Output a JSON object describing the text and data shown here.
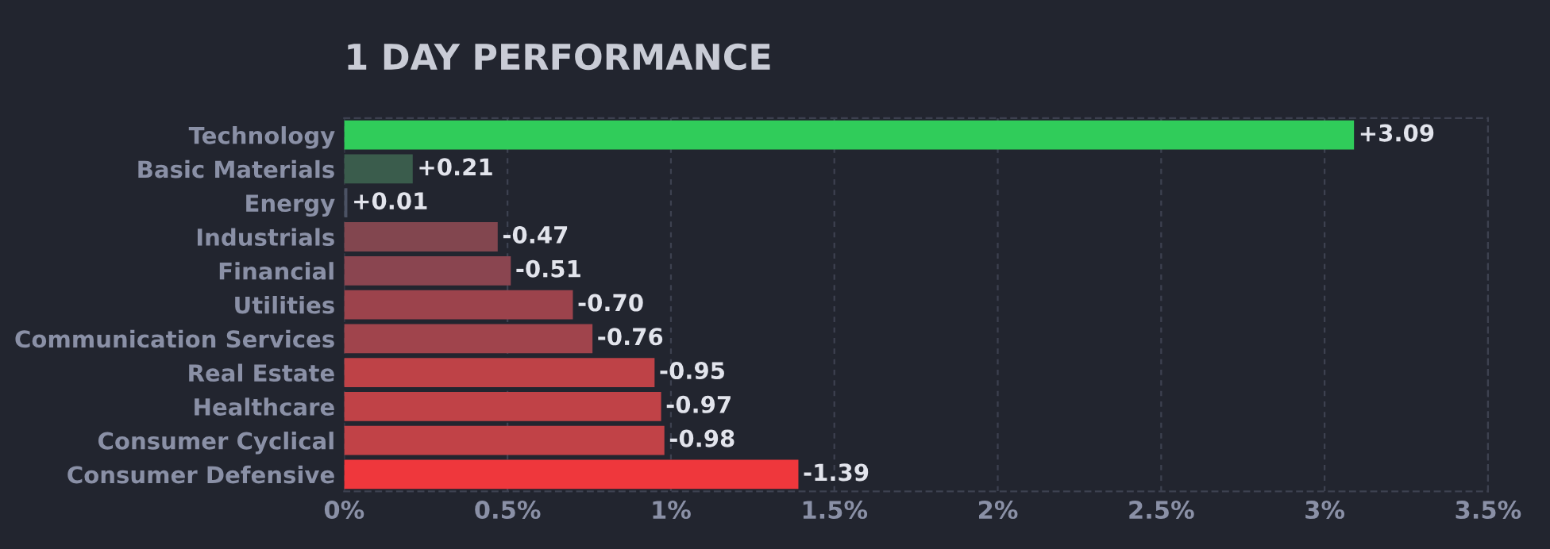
{
  "chart_data": {
    "type": "bar",
    "orientation": "horizontal",
    "title": "1 DAY PERFORMANCE",
    "categories": [
      "Technology",
      "Basic Materials",
      "Energy",
      "Industrials",
      "Financial",
      "Utilities",
      "Communication Services",
      "Real Estate",
      "Healthcare",
      "Consumer Cyclical",
      "Consumer Defensive"
    ],
    "values": [
      3.09,
      0.21,
      0.01,
      -0.47,
      -0.51,
      -0.7,
      -0.76,
      -0.95,
      -0.97,
      -0.98,
      -1.39
    ],
    "base": [
      0,
      0,
      0,
      0.47,
      0.51,
      0.7,
      0.76,
      0.95,
      0.97,
      0.98,
      1.39
    ],
    "value_labels": [
      "+3.09",
      "+0.21",
      "+0.01",
      "-0.47",
      "-0.51",
      "-0.70",
      "-0.76",
      "-0.95",
      "-0.97",
      "-0.98",
      "-1.39"
    ],
    "colors": [
      "#30cc5a",
      "#3a5c4c",
      "#4b5264",
      "#82464f",
      "#8a4550",
      "#9c434c",
      "#a0444c",
      "#be4247",
      "#c04247",
      "#c14247",
      "#ef373c"
    ],
    "xlim": [
      0,
      3.5
    ],
    "xticks": [
      {
        "value": 0,
        "label": "0%"
      },
      {
        "value": 0.5,
        "label": "0.5%"
      },
      {
        "value": 1,
        "label": "1%"
      },
      {
        "value": 1.5,
        "label": "1.5%"
      },
      {
        "value": 2,
        "label": "2%"
      },
      {
        "value": 2.5,
        "label": "2.5%"
      },
      {
        "value": 3,
        "label": "3%"
      },
      {
        "value": 3.5,
        "label": "3.5%"
      }
    ],
    "grid": "x"
  }
}
